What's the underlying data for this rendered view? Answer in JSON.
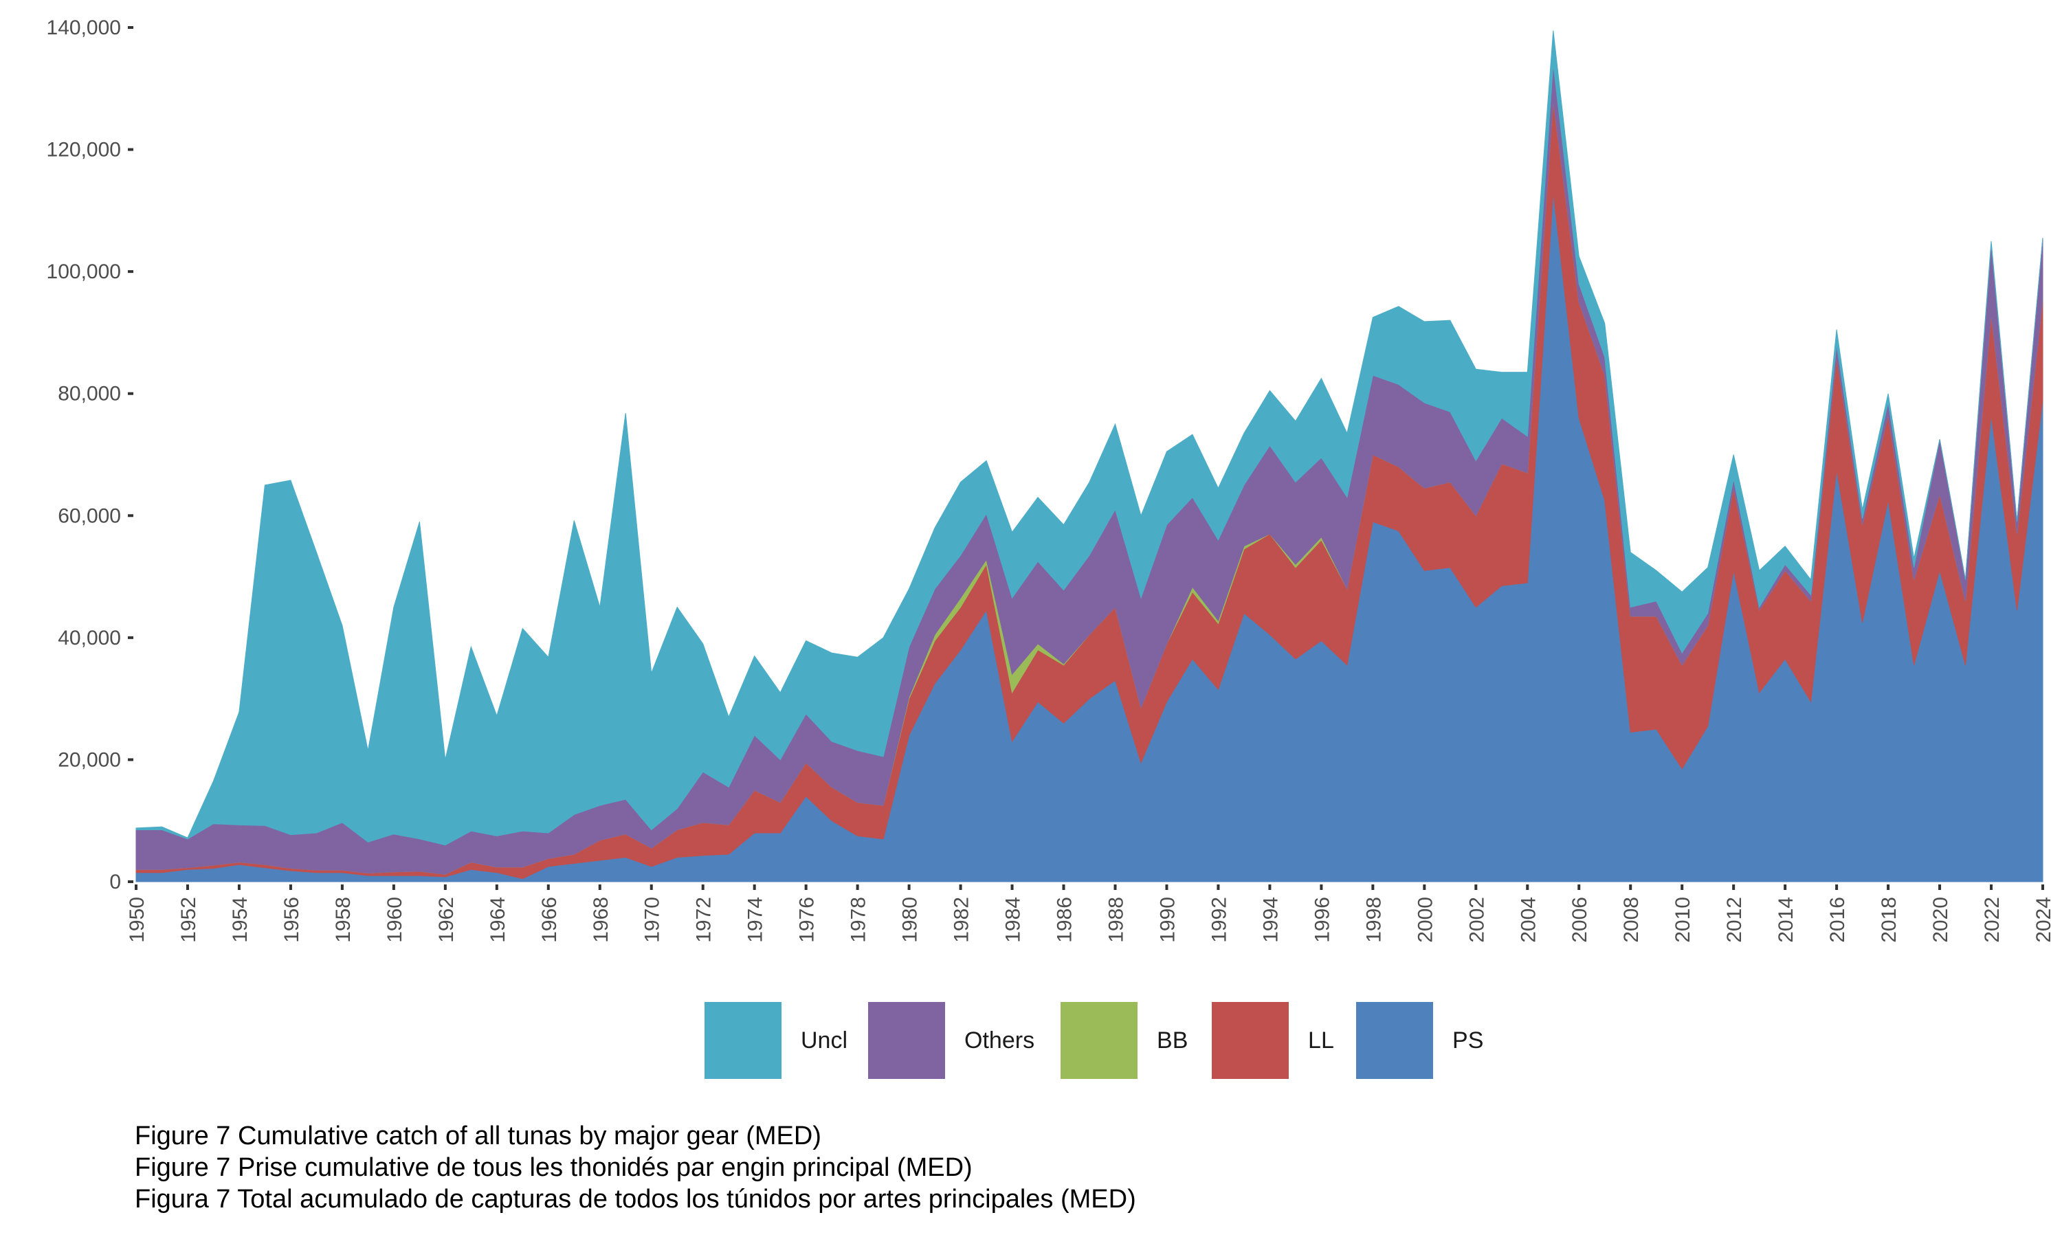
{
  "chart_data": {
    "type": "area",
    "stacked": true,
    "title": "",
    "xlabel": "",
    "ylabel": "",
    "ylim": [
      0,
      140000
    ],
    "yticks": [
      0,
      20000,
      40000,
      60000,
      80000,
      100000,
      120000,
      140000
    ],
    "ytick_labels": [
      "0",
      "20,000",
      "40,000",
      "60,000",
      "80,000",
      "100,000",
      "120,000",
      "140,000"
    ],
    "xlim": [
      1950,
      2024
    ],
    "xticks": [
      1950,
      1952,
      1954,
      1956,
      1958,
      1960,
      1962,
      1964,
      1966,
      1968,
      1970,
      1972,
      1974,
      1976,
      1978,
      1980,
      1982,
      1984,
      1986,
      1988,
      1990,
      1992,
      1994,
      1996,
      1998,
      2000,
      2002,
      2004,
      2006,
      2008,
      2010,
      2012,
      2014,
      2016,
      2018,
      2020,
      2022,
      2024
    ],
    "xtick_labels": [
      "1950",
      "1952",
      "1954",
      "1956",
      "1958",
      "1960",
      "1962",
      "1964",
      "1966",
      "1968",
      "1970",
      "1972",
      "1974",
      "1976",
      "1978",
      "1980",
      "1982",
      "1984",
      "1986",
      "1988",
      "1990",
      "1992",
      "1994",
      "1996",
      "1998",
      "2000",
      "2002",
      "2004",
      "2006",
      "2008",
      "2010",
      "2012",
      "2014",
      "2016",
      "2018",
      "2020",
      "2022",
      "2024"
    ],
    "grid": false,
    "legend_position": "bottom",
    "x": [
      1950,
      1951,
      1952,
      1953,
      1954,
      1955,
      1956,
      1957,
      1958,
      1959,
      1960,
      1961,
      1962,
      1963,
      1964,
      1965,
      1966,
      1967,
      1968,
      1969,
      1970,
      1971,
      1972,
      1973,
      1974,
      1975,
      1976,
      1977,
      1978,
      1979,
      1980,
      1981,
      1982,
      1983,
      1984,
      1985,
      1986,
      1987,
      1988,
      1989,
      1990,
      1991,
      1992,
      1993,
      1994,
      1995,
      1996,
      1997,
      1998,
      1999,
      2000,
      2001,
      2002,
      2003,
      2004,
      2005,
      2006,
      2007,
      2008,
      2009,
      2010,
      2011,
      2012,
      2013,
      2014,
      2015,
      2016,
      2017,
      2018,
      2019,
      2020,
      2021,
      2022,
      2023,
      2024
    ],
    "stack_order_bottom_to_top": [
      "PS",
      "LL",
      "BB",
      "Others",
      "Uncl"
    ],
    "series": [
      {
        "name": "PS",
        "color": "#4f81bd",
        "values": [
          1500,
          1500,
          2000,
          2200,
          2800,
          2300,
          1800,
          1500,
          1500,
          1000,
          1000,
          1000,
          800,
          2000,
          1500,
          500,
          2500,
          3000,
          3500,
          4000,
          2500,
          4000,
          4300,
          4500,
          8000,
          8000,
          14000,
          10000,
          7500,
          7000,
          24000,
          32500,
          38000,
          44500,
          23000,
          29500,
          26000,
          30000,
          33000,
          19500,
          29500,
          36500,
          31500,
          44000,
          40500,
          36500,
          39500,
          35500,
          59000,
          57500,
          51000,
          51500,
          45000,
          48500,
          49000,
          113000,
          76000,
          62500,
          24500,
          25000,
          18500,
          25500,
          51000,
          31000,
          36500,
          29500,
          67500,
          42500,
          62500,
          35500,
          51000,
          35500,
          76500,
          44500,
          79000
        ]
      },
      {
        "name": "LL",
        "color": "#c0504d",
        "values": [
          500,
          500,
          300,
          500,
          400,
          500,
          400,
          400,
          400,
          400,
          600,
          700,
          400,
          1200,
          900,
          1900,
          1300,
          1500,
          3300,
          3800,
          3000,
          4500,
          5400,
          4800,
          7000,
          5000,
          5500,
          5500,
          5500,
          5500,
          6000,
          7000,
          7000,
          7500,
          8000,
          8500,
          9500,
          10500,
          12000,
          9000,
          9500,
          11000,
          10800,
          10500,
          16500,
          15000,
          16500,
          12500,
          11000,
          10500,
          13500,
          14000,
          15000,
          20000,
          18000,
          15000,
          19000,
          20500,
          19000,
          18500,
          17000,
          16500,
          13500,
          13500,
          14500,
          16500,
          18500,
          16000,
          14000,
          14000,
          12500,
          10500,
          16500,
          12500,
          16500
        ]
      },
      {
        "name": "BB",
        "color": "#9bbb59",
        "values": [
          0,
          0,
          0,
          0,
          0,
          0,
          0,
          0,
          0,
          0,
          0,
          0,
          0,
          0,
          0,
          0,
          0,
          0,
          0,
          0,
          0,
          0,
          0,
          0,
          0,
          0,
          0,
          0,
          0,
          0,
          300,
          1000,
          1500,
          800,
          3000,
          1000,
          200,
          0,
          0,
          0,
          0,
          800,
          500,
          500,
          0,
          500,
          500,
          0,
          0,
          0,
          0,
          0,
          0,
          0,
          0,
          0,
          0,
          0,
          0,
          0,
          0,
          0,
          0,
          0,
          0,
          0,
          0,
          0,
          0,
          0,
          0,
          0,
          0,
          0,
          0
        ]
      },
      {
        "name": "Others",
        "color": "#8064a2",
        "values": [
          6500,
          6500,
          4700,
          6800,
          6100,
          6400,
          5500,
          6100,
          7800,
          5100,
          6200,
          5300,
          4800,
          5100,
          5100,
          5900,
          4200,
          6500,
          5700,
          5700,
          3000,
          3500,
          8300,
          6200,
          9000,
          7000,
          8000,
          7500,
          8500,
          8000,
          8200,
          7500,
          7000,
          7500,
          12500,
          13500,
          12100,
          13000,
          16000,
          18000,
          19500,
          14700,
          13200,
          10000,
          14500,
          13500,
          13000,
          15000,
          13000,
          13500,
          14000,
          11500,
          9000,
          7500,
          6000,
          6000,
          3000,
          3000,
          1500,
          2500,
          2000,
          2000,
          1500,
          500,
          1000,
          1000,
          2000,
          1000,
          2000,
          2000,
          9000,
          3500,
          11500,
          2000,
          10000
        ]
      },
      {
        "name": "Uncl",
        "color": "#4bacc6",
        "values": [
          300,
          500,
          200,
          7000,
          18500,
          55800,
          58100,
          46000,
          32300,
          15000,
          37200,
          52000,
          14000,
          30200,
          19700,
          33200,
          28800,
          48200,
          32500,
          63300,
          25700,
          33000,
          21000,
          11500,
          13000,
          11000,
          12000,
          14500,
          15300,
          19500,
          9500,
          10000,
          12000,
          8700,
          10800,
          10500,
          10700,
          12000,
          14000,
          13500,
          12000,
          10300,
          8500,
          8500,
          9000,
          10000,
          13000,
          10500,
          9500,
          12800,
          13300,
          15000,
          15000,
          7500,
          10500,
          5500,
          4500,
          5500,
          9000,
          5000,
          10000,
          7500,
          4000,
          6000,
          3000,
          2500,
          2500,
          1500,
          1500,
          1500,
          0,
          0,
          500,
          0,
          0
        ]
      }
    ]
  },
  "legend": {
    "items": [
      {
        "label": "Uncl",
        "color": "#4bacc6"
      },
      {
        "label": "Others",
        "color": "#8064a2"
      },
      {
        "label": "BB",
        "color": "#9bbb59"
      },
      {
        "label": "LL",
        "color": "#c0504d"
      },
      {
        "label": "PS",
        "color": "#4f81bd"
      }
    ]
  },
  "captions": [
    "Figure 7 Cumulative catch of all tunas by major gear (MED)",
    "Figure 7 Prise cumulative de tous les thonidés par engin principal (MED)",
    "Figura 7 Total acumulado de capturas de todos los túnidos por artes principales (MED)"
  ]
}
